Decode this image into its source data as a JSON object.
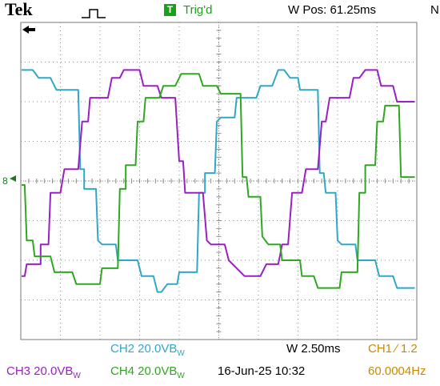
{
  "header": {
    "brand": "Tek",
    "trigger_icon": "T",
    "trigger_status": "Trig'd",
    "wpos": "W Pos: 61.25ms",
    "cut_right": "N"
  },
  "footer": {
    "ch2": "CH2  20.0VB",
    "ch2_sub": "W",
    "timebase": "W  2.50ms",
    "ch1_trig": "CH1  ∕  1.2",
    "ch3": "CH3  20.0VB",
    "ch3_sub": "W",
    "ch4": "CH4  20.0VB",
    "ch4_sub": "W",
    "datetime": "16-Jun-25  10:32",
    "frequency": "60.0004Hz"
  },
  "colors": {
    "ch2": "#2fa8c8",
    "ch3": "#9a1fc4",
    "ch4": "#2ea81e",
    "ch1_label": "#c88a00",
    "grid": "#8c8c8c",
    "marker": "#1f7a1f"
  },
  "markers": {
    "time_marker": "left-arrow-icon",
    "ground_marker": "channel-ground-icon",
    "ground_label": "8"
  },
  "chart_data": {
    "type": "line",
    "title": "",
    "xlabel": "",
    "ylabel": "",
    "x_divisions": 10,
    "y_divisions": 8,
    "xlim": [
      0,
      10
    ],
    "ylim": [
      -4,
      4
    ],
    "grid": true,
    "series": [
      {
        "name": "CH2",
        "color": "#2fa8c8",
        "points": [
          [
            0.02,
            2.8
          ],
          [
            0.3,
            2.8
          ],
          [
            0.45,
            2.6
          ],
          [
            0.75,
            2.6
          ],
          [
            0.9,
            2.3
          ],
          [
            1.45,
            2.3
          ],
          [
            1.5,
            0.3
          ],
          [
            1.6,
            0.3
          ],
          [
            1.6,
            -0.2
          ],
          [
            1.9,
            -0.2
          ],
          [
            1.95,
            -1.5
          ],
          [
            2.05,
            -1.6
          ],
          [
            2.4,
            -1.6
          ],
          [
            2.45,
            -2.0
          ],
          [
            2.95,
            -2.0
          ],
          [
            3.05,
            -2.4
          ],
          [
            3.35,
            -2.4
          ],
          [
            3.45,
            -2.8
          ],
          [
            3.55,
            -2.8
          ],
          [
            3.7,
            -2.6
          ],
          [
            3.95,
            -2.6
          ],
          [
            4.0,
            -2.3
          ],
          [
            4.45,
            -2.3
          ],
          [
            4.5,
            -0.3
          ],
          [
            4.65,
            -0.3
          ],
          [
            4.65,
            0.2
          ],
          [
            4.9,
            0.2
          ],
          [
            4.95,
            1.5
          ],
          [
            5.05,
            1.6
          ],
          [
            5.4,
            1.6
          ],
          [
            5.45,
            2.1
          ],
          [
            5.95,
            2.1
          ],
          [
            6.05,
            2.4
          ],
          [
            6.35,
            2.4
          ],
          [
            6.5,
            2.8
          ],
          [
            6.65,
            2.8
          ],
          [
            6.8,
            2.6
          ],
          [
            7.0,
            2.6
          ],
          [
            7.05,
            2.3
          ],
          [
            7.5,
            2.3
          ],
          [
            7.55,
            0.2
          ],
          [
            7.65,
            0.2
          ],
          [
            7.7,
            -0.3
          ],
          [
            7.95,
            -0.3
          ],
          [
            8.0,
            -1.5
          ],
          [
            8.1,
            -1.6
          ],
          [
            8.45,
            -1.6
          ],
          [
            8.5,
            -2.0
          ],
          [
            8.95,
            -2.0
          ],
          [
            9.05,
            -2.4
          ],
          [
            9.4,
            -2.4
          ],
          [
            9.5,
            -2.7
          ],
          [
            9.85,
            -2.7
          ],
          [
            9.95,
            -2.7
          ]
        ]
      },
      {
        "name": "CH3",
        "color": "#9a1fc4",
        "points": [
          [
            0.02,
            -2.4
          ],
          [
            0.1,
            -2.4
          ],
          [
            0.15,
            -2.1
          ],
          [
            0.5,
            -2.1
          ],
          [
            0.5,
            -1.6
          ],
          [
            0.7,
            -1.6
          ],
          [
            0.75,
            -0.3
          ],
          [
            1.0,
            -0.3
          ],
          [
            1.1,
            0.3
          ],
          [
            1.45,
            0.3
          ],
          [
            1.55,
            1.5
          ],
          [
            1.7,
            1.5
          ],
          [
            1.75,
            2.1
          ],
          [
            2.2,
            2.1
          ],
          [
            2.3,
            2.6
          ],
          [
            2.5,
            2.6
          ],
          [
            2.6,
            2.8
          ],
          [
            3.0,
            2.8
          ],
          [
            3.1,
            2.4
          ],
          [
            3.45,
            2.4
          ],
          [
            3.55,
            2.1
          ],
          [
            3.9,
            2.1
          ],
          [
            4.0,
            0.5
          ],
          [
            4.1,
            0.5
          ],
          [
            4.15,
            -0.3
          ],
          [
            4.6,
            -0.3
          ],
          [
            4.7,
            -1.5
          ],
          [
            4.8,
            -1.6
          ],
          [
            5.15,
            -1.6
          ],
          [
            5.25,
            -2.0
          ],
          [
            5.45,
            -2.2
          ],
          [
            5.65,
            -2.4
          ],
          [
            6.05,
            -2.4
          ],
          [
            6.2,
            -2.1
          ],
          [
            6.5,
            -2.1
          ],
          [
            6.6,
            -1.6
          ],
          [
            6.75,
            -1.6
          ],
          [
            6.85,
            -0.3
          ],
          [
            7.1,
            -0.3
          ],
          [
            7.2,
            0.3
          ],
          [
            7.5,
            0.3
          ],
          [
            7.6,
            1.5
          ],
          [
            7.7,
            1.5
          ],
          [
            7.8,
            2.1
          ],
          [
            8.3,
            2.1
          ],
          [
            8.4,
            2.6
          ],
          [
            8.55,
            2.6
          ],
          [
            8.7,
            2.8
          ],
          [
            9.0,
            2.8
          ],
          [
            9.1,
            2.4
          ],
          [
            9.4,
            2.4
          ],
          [
            9.5,
            2.0
          ],
          [
            9.95,
            2.0
          ]
        ]
      },
      {
        "name": "CH4",
        "color": "#2ea81e",
        "points": [
          [
            0.02,
            -0.1
          ],
          [
            0.1,
            -0.1
          ],
          [
            0.15,
            -1.5
          ],
          [
            0.3,
            -1.5
          ],
          [
            0.35,
            -1.9
          ],
          [
            0.75,
            -1.9
          ],
          [
            0.85,
            -2.3
          ],
          [
            1.3,
            -2.3
          ],
          [
            1.4,
            -2.6
          ],
          [
            2.0,
            -2.6
          ],
          [
            2.05,
            -2.2
          ],
          [
            2.45,
            -2.2
          ],
          [
            2.5,
            -0.2
          ],
          [
            2.65,
            -0.2
          ],
          [
            2.65,
            0.4
          ],
          [
            2.9,
            0.4
          ],
          [
            2.95,
            1.5
          ],
          [
            3.1,
            1.5
          ],
          [
            3.15,
            2.1
          ],
          [
            3.5,
            2.1
          ],
          [
            3.6,
            2.4
          ],
          [
            3.9,
            2.4
          ],
          [
            4.05,
            2.7
          ],
          [
            4.5,
            2.7
          ],
          [
            4.6,
            2.4
          ],
          [
            4.95,
            2.4
          ],
          [
            5.05,
            2.2
          ],
          [
            5.55,
            2.2
          ],
          [
            5.6,
            0.1
          ],
          [
            5.7,
            0.1
          ],
          [
            5.75,
            -0.4
          ],
          [
            6.05,
            -0.4
          ],
          [
            6.1,
            -1.4
          ],
          [
            6.25,
            -1.6
          ],
          [
            6.55,
            -1.6
          ],
          [
            6.6,
            -2.0
          ],
          [
            7.05,
            -2.0
          ],
          [
            7.1,
            -2.4
          ],
          [
            7.4,
            -2.4
          ],
          [
            7.5,
            -2.7
          ],
          [
            8.05,
            -2.7
          ],
          [
            8.1,
            -2.3
          ],
          [
            8.5,
            -2.3
          ],
          [
            8.55,
            -0.3
          ],
          [
            8.7,
            -0.3
          ],
          [
            8.7,
            0.4
          ],
          [
            8.95,
            0.4
          ],
          [
            9.0,
            1.5
          ],
          [
            9.15,
            1.5
          ],
          [
            9.2,
            1.9
          ],
          [
            9.55,
            1.9
          ],
          [
            9.6,
            0.1
          ],
          [
            9.95,
            0.1
          ]
        ]
      }
    ]
  }
}
